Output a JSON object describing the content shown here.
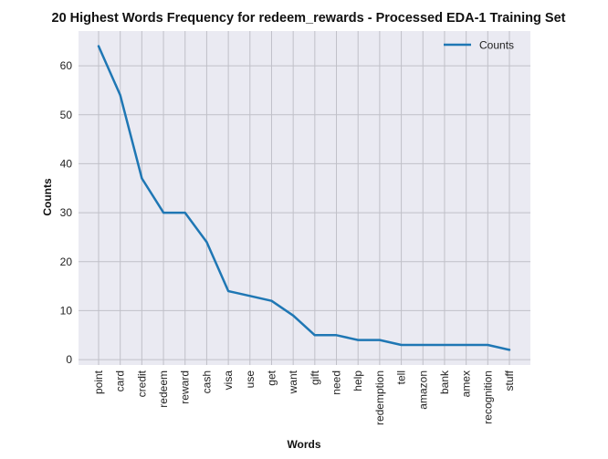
{
  "chart_data": {
    "type": "line",
    "title": "20 Highest Words Frequency for redeem_rewards - Processed EDA-1 Training Set",
    "xlabel": "Words",
    "ylabel": "Counts",
    "categories": [
      "point",
      "card",
      "credit",
      "redeem",
      "reward",
      "cash",
      "visa",
      "use",
      "get",
      "want",
      "gift",
      "need",
      "help",
      "redemption",
      "tell",
      "amazon",
      "bank",
      "amex",
      "recognition",
      "stuff"
    ],
    "series": [
      {
        "name": "Counts",
        "values": [
          64,
          54,
          37,
          30,
          30,
          24,
          14,
          13,
          12,
          9,
          5,
          5,
          4,
          4,
          3,
          3,
          3,
          3,
          3,
          2
        ]
      }
    ],
    "ylim": [
      -1.1,
      67.1
    ],
    "yticks": [
      0,
      10,
      20,
      30,
      40,
      50,
      60
    ],
    "grid": true,
    "legend_position": "top-right",
    "colors": {
      "line": "#1f77b4",
      "background": "#eaeaf2",
      "grid": "#c0c0c8"
    }
  }
}
